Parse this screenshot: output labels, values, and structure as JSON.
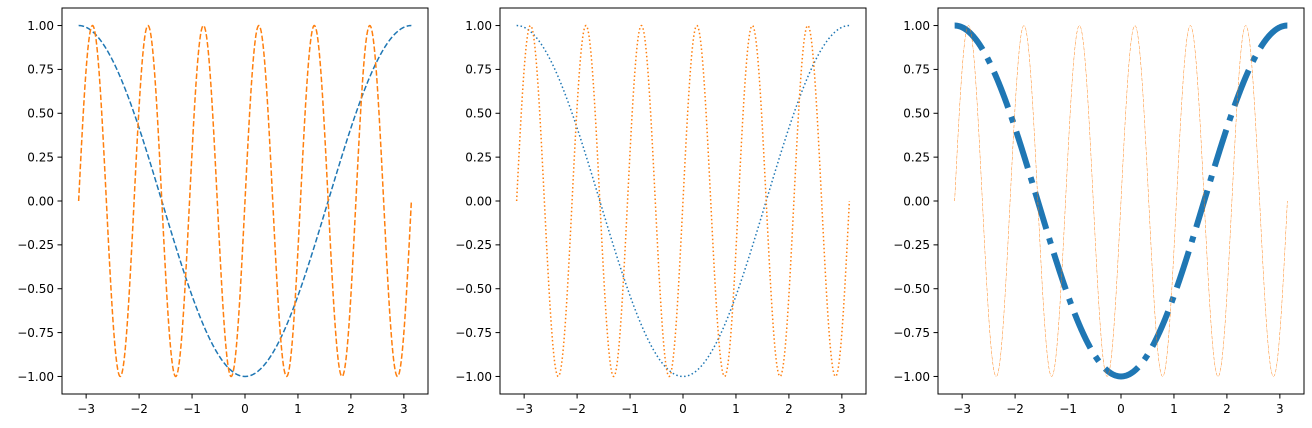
{
  "chart_data": [
    {
      "type": "line",
      "xlim": [
        -3.4558,
        3.4558
      ],
      "ylim": [
        -1.1,
        1.1
      ],
      "xticks": [
        -3,
        -2,
        -1,
        0,
        1,
        2,
        3
      ],
      "xtick_labels": [
        "−3",
        "−2",
        "−1",
        "0",
        "1",
        "2",
        "3"
      ],
      "yticks": [
        1.0,
        0.75,
        0.5,
        0.25,
        0.0,
        -0.25,
        -0.5,
        -0.75,
        -1.0
      ],
      "ytick_labels": [
        "1.00",
        "0.75",
        "0.50",
        "0.25",
        "0.00",
        "−0.25",
        "−0.50",
        "−0.75",
        "−1.00"
      ],
      "grid": false,
      "legend": "none",
      "series": [
        {
          "function": "-cos(x)",
          "x_range": [
            -3.14159,
            3.14159
          ],
          "color": "#1f77b4",
          "linestyle": "dashed",
          "linewidth": 1.5
        },
        {
          "function": "sin(6x)",
          "x_range": [
            -3.14159,
            3.14159
          ],
          "color": "#ff7f0e",
          "linestyle": "dashed",
          "linewidth": 1.5
        }
      ]
    },
    {
      "type": "line",
      "xlim": [
        -3.4558,
        3.4558
      ],
      "ylim": [
        -1.1,
        1.1
      ],
      "xticks": [
        -3,
        -2,
        -1,
        0,
        1,
        2,
        3
      ],
      "xtick_labels": [
        "−3",
        "−2",
        "−1",
        "0",
        "1",
        "2",
        "3"
      ],
      "yticks": [
        1.0,
        0.75,
        0.5,
        0.25,
        0.0,
        -0.25,
        -0.5,
        -0.75,
        -1.0
      ],
      "ytick_labels": [
        "1.00",
        "0.75",
        "0.50",
        "0.25",
        "0.00",
        "−0.25",
        "−0.50",
        "−0.75",
        "−1.00"
      ],
      "grid": false,
      "legend": "none",
      "series": [
        {
          "function": "-cos(x)",
          "x_range": [
            -3.14159,
            3.14159
          ],
          "color": "#1f77b4",
          "linestyle": "dotted",
          "linewidth": 1.5
        },
        {
          "function": "sin(6x)",
          "x_range": [
            -3.14159,
            3.14159
          ],
          "color": "#ff7f0e",
          "linestyle": "dotted",
          "linewidth": 1.5
        }
      ]
    },
    {
      "type": "line",
      "xlim": [
        -3.4558,
        3.4558
      ],
      "ylim": [
        -1.1,
        1.1
      ],
      "xticks": [
        -3,
        -2,
        -1,
        0,
        1,
        2,
        3
      ],
      "xtick_labels": [
        "−3",
        "−2",
        "−1",
        "0",
        "1",
        "2",
        "3"
      ],
      "yticks": [
        1.0,
        0.75,
        0.5,
        0.25,
        0.0,
        -0.25,
        -0.5,
        -0.75,
        -1.0
      ],
      "ytick_labels": [
        "1.00",
        "0.75",
        "0.50",
        "0.25",
        "0.00",
        "−0.25",
        "−0.50",
        "−0.75",
        "−1.00"
      ],
      "grid": false,
      "legend": "none",
      "series": [
        {
          "function": "-cos(x)",
          "x_range": [
            -3.14159,
            3.14159
          ],
          "color": "#1f77b4",
          "linestyle": "dashdot",
          "linewidth": 6
        },
        {
          "function": "sin(6x)",
          "x_range": [
            -3.14159,
            3.14159
          ],
          "color": "#ff7f0e",
          "linestyle": "dashdot",
          "linewidth": 0.5
        }
      ]
    }
  ]
}
